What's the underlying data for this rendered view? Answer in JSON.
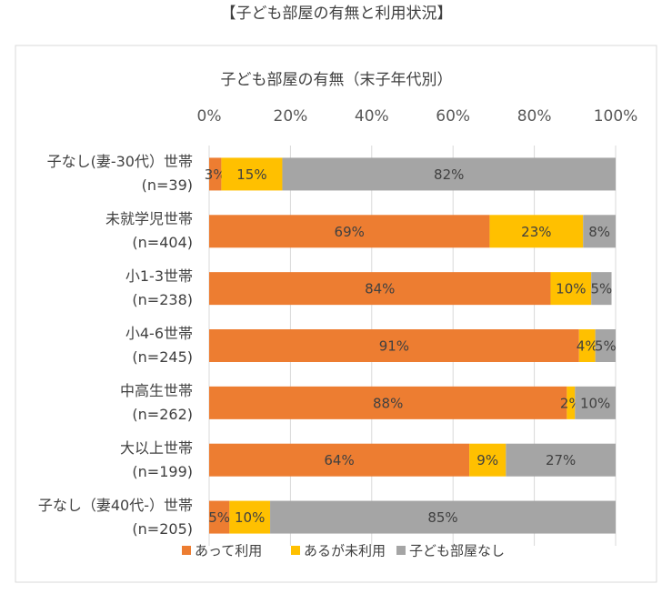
{
  "heading": "【子ども部屋の有無と利用状況】",
  "chart_data": {
    "type": "stacked_bar",
    "orientation": "horizontal",
    "title": "子ども部屋の有無（末子年代別）",
    "categories": [
      "子なし(妻-30代）世帯\n(n=39)",
      "未就学児世帯\n(n=404)",
      "小1-3世帯\n(n=238)",
      "小4-6世帯\n(n=245)",
      "中高生世帯\n(n=262)",
      "大以上世帯\n(n=199)",
      "子なし（妻40代-）世帯\n(n=205)"
    ],
    "series": [
      {
        "name": "あって利用",
        "color": "#ED7D31",
        "values": [
          3,
          69,
          84,
          91,
          88,
          64,
          5
        ],
        "value_labels": [
          "3%",
          "69%",
          "84%",
          "91%",
          "88%",
          "64%",
          "5%"
        ]
      },
      {
        "name": "あるが未利用",
        "color": "#FFC000",
        "values": [
          15,
          23,
          10,
          4,
          2,
          9,
          10
        ],
        "value_labels": [
          "15%",
          "23%",
          "10%",
          "4%",
          "2%",
          "9%",
          "10%"
        ]
      },
      {
        "name": "子ども部屋なし",
        "color": "#A5A5A5",
        "values": [
          82,
          8,
          5,
          5,
          10,
          27,
          85
        ],
        "value_labels": [
          "82%",
          "8%",
          "5%",
          "5%",
          "10%",
          "27%",
          "85%"
        ]
      }
    ],
    "xlim": [
      0,
      100
    ],
    "xticks": [
      {
        "value": 0,
        "label": "0%"
      },
      {
        "value": 20,
        "label": "20%"
      },
      {
        "value": 40,
        "label": "40%"
      },
      {
        "value": 60,
        "label": "60%"
      },
      {
        "value": 80,
        "label": "80%"
      },
      {
        "value": 100,
        "label": "100%"
      }
    ],
    "grid": true,
    "legend": "bottom"
  }
}
